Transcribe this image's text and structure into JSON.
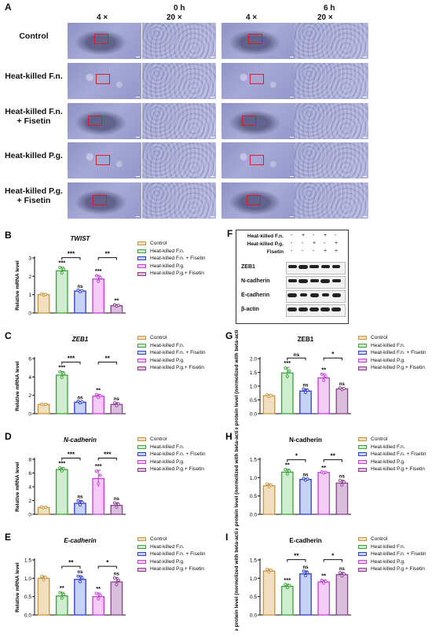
{
  "panel_a": {
    "label": "A",
    "time_headers": [
      "0 h",
      "6 h"
    ],
    "mag_headers": [
      "4 ×",
      "20 ×",
      "4 ×",
      "20 ×"
    ],
    "rows": [
      {
        "line1": "Control",
        "line2": ""
      },
      {
        "line1": "Heat-killed F.n.",
        "line2": ""
      },
      {
        "line1": "Heat-killed F.n.",
        "line2": "+ Fisetin"
      },
      {
        "line1": "Heat-killed P.g.",
        "line2": ""
      },
      {
        "line1": "Heat-killed P.g.",
        "line2": "+ Fisetin"
      }
    ]
  },
  "legend": [
    "Control",
    "Heat-killed F.n.",
    "Heat-killed F.n. + Fisetin",
    "Heat-killed P.g.",
    "Heat-killed P.g.+ Fisetin"
  ],
  "colors": {
    "Control": "#c8963e",
    "Fn": "#3aa43a",
    "FnFis": "#2f3fcf",
    "Pg": "#c13fd6",
    "PgFis": "#8a3f8f",
    "fill_Control": "#f2dfc0",
    "fill_Fn": "#cfeecf",
    "fill_FnFis": "#c6d3f5",
    "fill_Pg": "#f3cdf5",
    "fill_PgFis": "#d9bfdc"
  },
  "panel_f": {
    "label": "F",
    "conditions": [
      {
        "name": "Heat-killed F.n.",
        "signs": [
          "-",
          "+",
          "-",
          "+",
          "-"
        ]
      },
      {
        "name": "Heat-killed P.g.",
        "signs": [
          "-",
          "-",
          "+",
          "-",
          "+"
        ]
      },
      {
        "name": "Fisetin",
        "signs": [
          "-",
          "-",
          "-",
          "+",
          "+"
        ]
      }
    ],
    "proteins": [
      "ZEB1",
      "N-cadherin",
      "E-cadherin",
      "β-actin"
    ]
  },
  "chart_data": [
    {
      "panel": "B",
      "type": "bar",
      "title": "TWIST",
      "ylabel": "Relative mRNA level",
      "ylim": [
        0,
        3
      ],
      "yticks": [
        "0",
        "1",
        "2",
        "3"
      ],
      "categories": [
        "Control",
        "Heat-killed F.n.",
        "Heat-killed F.n. + Fisetin",
        "Heat-killed P.g.",
        "Heat-killed P.g.+ Fisetin"
      ],
      "values": [
        1.0,
        2.3,
        1.2,
        1.85,
        0.4
      ],
      "errors": [
        0.05,
        0.2,
        0.05,
        0.2,
        0.05
      ],
      "significance": [
        "",
        "***",
        "ns",
        "***",
        "**"
      ],
      "brackets": [
        {
          "from": 1,
          "to": 2,
          "label": "***"
        },
        {
          "from": 3,
          "to": 4,
          "label": "**"
        }
      ]
    },
    {
      "panel": "C",
      "type": "bar",
      "title": "ZEB1",
      "ylabel": "Relative mRNA level",
      "ylim": [
        0,
        6
      ],
      "yticks": [
        "0",
        "2",
        "4",
        "6"
      ],
      "categories": [
        "Control",
        "Heat-killed F.n.",
        "Heat-killed F.n. + Fisetin",
        "Heat-killed P.g.",
        "Heat-killed P.g.+ Fisetin"
      ],
      "values": [
        1.0,
        4.2,
        1.25,
        1.9,
        1.0
      ],
      "errors": [
        0.05,
        0.4,
        0.1,
        0.2,
        0.2
      ],
      "significance": [
        "",
        "***",
        "ns",
        "**",
        "ns"
      ],
      "brackets": [
        {
          "from": 1,
          "to": 2,
          "label": "***"
        },
        {
          "from": 3,
          "to": 4,
          "label": "**"
        }
      ]
    },
    {
      "panel": "D",
      "type": "bar",
      "title": "N-cadherin",
      "ylabel": "Relative mRNA level",
      "ylim": [
        0,
        8
      ],
      "yticks": [
        "0",
        "2",
        "4",
        "6",
        "8"
      ],
      "categories": [
        "Control",
        "Heat-killed F.n.",
        "Heat-killed F.n. + Fisetin",
        "Heat-killed P.g.",
        "Heat-killed P.g.+ Fisetin"
      ],
      "values": [
        1.0,
        6.5,
        1.6,
        5.2,
        1.3
      ],
      "errors": [
        0.1,
        0.3,
        0.4,
        1.2,
        0.4
      ],
      "significance": [
        "",
        "***",
        "ns",
        "***",
        "ns"
      ],
      "brackets": [
        {
          "from": 1,
          "to": 2,
          "label": "***"
        },
        {
          "from": 3,
          "to": 4,
          "label": "***"
        }
      ]
    },
    {
      "panel": "E",
      "type": "bar",
      "title": "E-cadherin",
      "ylabel": "Relative mRNA level",
      "ylim": [
        0,
        1.5
      ],
      "yticks": [
        "0.0",
        "0.5",
        "1.0",
        "1.5"
      ],
      "categories": [
        "Control",
        "Heat-killed F.n.",
        "Heat-killed F.n. + Fisetin",
        "Heat-killed P.g.",
        "Heat-killed P.g.+ Fisetin"
      ],
      "values": [
        1.0,
        0.52,
        0.97,
        0.5,
        0.9
      ],
      "errors": [
        0.06,
        0.1,
        0.1,
        0.1,
        0.12
      ],
      "significance": [
        "",
        "**",
        "ns",
        "**",
        "ns"
      ],
      "brackets": [
        {
          "from": 1,
          "to": 2,
          "label": "**"
        },
        {
          "from": 3,
          "to": 4,
          "label": "*"
        }
      ]
    },
    {
      "panel": "G",
      "type": "bar",
      "title": "ZEB1",
      "ylabel": "Relative protein level (normolized with beta-actin)",
      "ylim": [
        0,
        2.0
      ],
      "yticks": [
        "0.0",
        "0.5",
        "1.0",
        "1.5",
        "2.0"
      ],
      "categories": [
        "Control",
        "Heat-killed F.n.",
        "Heat-killed F.n. + Fisetin",
        "Heat-killed P.g.",
        "Heat-killed P.g.+ Fisetin"
      ],
      "values": [
        0.65,
        1.48,
        0.82,
        1.3,
        0.9
      ],
      "errors": [
        0.04,
        0.2,
        0.08,
        0.15,
        0.04
      ],
      "significance": [
        "",
        "***",
        "ns",
        "**",
        "ns"
      ],
      "brackets": [
        {
          "from": 1,
          "to": 2,
          "label": "ns"
        },
        {
          "from": 3,
          "to": 4,
          "label": "*"
        }
      ]
    },
    {
      "panel": "H",
      "type": "bar",
      "title": "N-cadherin",
      "ylabel": "Relative protein level (normolized with beta-actin)",
      "ylim": [
        0,
        1.5
      ],
      "yticks": [
        "0.0",
        "0.5",
        "1.0",
        "1.5"
      ],
      "categories": [
        "Control",
        "Heat-killed F.n.",
        "Heat-killed F.n. + Fisetin",
        "Heat-killed P.g.",
        "Heat-killed P.g.+ Fisetin"
      ],
      "values": [
        0.78,
        1.15,
        0.95,
        1.14,
        0.85
      ],
      "errors": [
        0.05,
        0.08,
        0.03,
        0.02,
        0.08
      ],
      "significance": [
        "",
        "**",
        "ns",
        "**",
        "ns"
      ],
      "brackets": [
        {
          "from": 1,
          "to": 2,
          "label": "*"
        },
        {
          "from": 3,
          "to": 4,
          "label": "**"
        }
      ]
    },
    {
      "panel": "I",
      "type": "bar",
      "title": "E-cadherin",
      "ylabel": "Relative protein level (normolized with beta-actin)",
      "ylim": [
        0,
        1.5
      ],
      "yticks": [
        "0.0",
        "0.5",
        "1.0",
        "1.5"
      ],
      "categories": [
        "Control",
        "Heat-killed F.n.",
        "Heat-killed F.n. + Fisetin",
        "Heat-killed P.g.",
        "Heat-killed P.g.+ Fisetin"
      ],
      "values": [
        1.2,
        0.78,
        1.12,
        0.9,
        1.1
      ],
      "errors": [
        0.05,
        0.06,
        0.08,
        0.05,
        0.06
      ],
      "significance": [
        "",
        "***",
        "ns",
        "**",
        "ns"
      ],
      "brackets": [
        {
          "from": 1,
          "to": 2,
          "label": "**"
        },
        {
          "from": 3,
          "to": 4,
          "label": "*"
        }
      ]
    }
  ]
}
